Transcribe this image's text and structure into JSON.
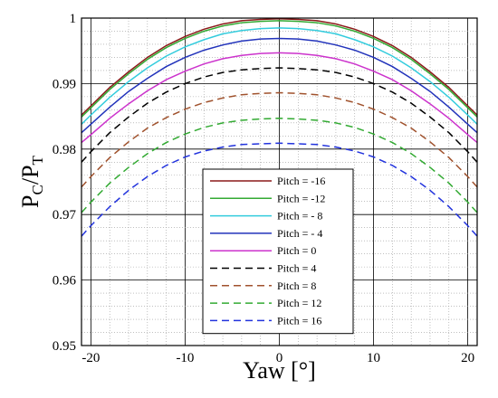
{
  "chart_data": {
    "type": "line",
    "title": "",
    "xlabel": "Yaw [°]",
    "ylabel_main": "P",
    "ylabel_sub1": "C",
    "ylabel_sep": "/P",
    "ylabel_sub2": "T",
    "xlim": [
      -21,
      21
    ],
    "ylim": [
      0.95,
      1.0
    ],
    "xticks": [
      -20,
      -10,
      0,
      10,
      20
    ],
    "xtick_labels": [
      "-20",
      "-10",
      "0",
      "10",
      "20"
    ],
    "yticks": [
      0.95,
      0.96,
      0.97,
      0.98,
      0.99,
      1.0
    ],
    "ytick_labels": [
      "0.95",
      "0.96",
      "0.97",
      "0.98",
      "0.99",
      "1"
    ],
    "grid": true,
    "legend_position": "bottom-center",
    "x": [
      -21,
      -20,
      -18,
      -16,
      -14,
      -12,
      -10,
      -8,
      -6,
      -4,
      -2,
      0,
      2,
      4,
      6,
      8,
      10,
      12,
      14,
      16,
      18,
      20,
      21
    ],
    "series": [
      {
        "name": "Pitch = -16",
        "color": "#8B1A1A",
        "dash": "solid",
        "values": [
          0.9852,
          0.9866,
          0.9894,
          0.9918,
          0.994,
          0.9958,
          0.9972,
          0.9983,
          0.9991,
          0.9996,
          0.9998,
          0.9999,
          0.9998,
          0.9996,
          0.9991,
          0.9983,
          0.9972,
          0.9958,
          0.994,
          0.9918,
          0.9894,
          0.9866,
          0.9852
        ]
      },
      {
        "name": "Pitch = -12",
        "color": "#33AA33",
        "dash": "solid",
        "values": [
          0.9849,
          0.9863,
          0.9891,
          0.9915,
          0.9937,
          0.9955,
          0.9969,
          0.998,
          0.9988,
          0.9993,
          0.9995,
          0.9996,
          0.9995,
          0.9993,
          0.9988,
          0.998,
          0.9969,
          0.9955,
          0.9937,
          0.9915,
          0.9891,
          0.9863,
          0.9849
        ]
      },
      {
        "name": "Pitch = - 8",
        "color": "#33CCDD",
        "dash": "solid",
        "values": [
          0.9838,
          0.9852,
          0.9879,
          0.9903,
          0.9924,
          0.9942,
          0.9956,
          0.9967,
          0.9976,
          0.9981,
          0.9984,
          0.9985,
          0.9984,
          0.9981,
          0.9976,
          0.9967,
          0.9956,
          0.9942,
          0.9924,
          0.9903,
          0.9879,
          0.9852,
          0.9838
        ]
      },
      {
        "name": "Pitch = - 4",
        "color": "#2233BB",
        "dash": "solid",
        "values": [
          0.9825,
          0.9838,
          0.9864,
          0.9888,
          0.9908,
          0.9926,
          0.994,
          0.9951,
          0.9959,
          0.9965,
          0.9968,
          0.9969,
          0.9968,
          0.9965,
          0.9959,
          0.9951,
          0.994,
          0.9926,
          0.9908,
          0.9888,
          0.9864,
          0.9838,
          0.9825
        ]
      },
      {
        "name": "Pitch = 0",
        "color": "#CC33CC",
        "dash": "solid",
        "values": [
          0.981,
          0.9822,
          0.9847,
          0.9869,
          0.9889,
          0.9906,
          0.9919,
          0.993,
          0.9938,
          0.9943,
          0.9946,
          0.9947,
          0.9946,
          0.9943,
          0.9938,
          0.993,
          0.9919,
          0.9906,
          0.9889,
          0.9869,
          0.9847,
          0.9822,
          0.981
        ]
      },
      {
        "name": "Pitch = 4",
        "color": "#000000",
        "dash": "dashed",
        "values": [
          0.978,
          0.9796,
          0.9825,
          0.9849,
          0.987,
          0.9887,
          0.99,
          0.991,
          0.9917,
          0.9921,
          0.9923,
          0.9924,
          0.9923,
          0.9921,
          0.9917,
          0.991,
          0.99,
          0.9887,
          0.987,
          0.9849,
          0.9825,
          0.9796,
          0.978
        ]
      },
      {
        "name": "Pitch = 8",
        "color": "#A0522D",
        "dash": "dashed",
        "values": [
          0.9742,
          0.9758,
          0.9787,
          0.9811,
          0.9832,
          0.9848,
          0.9861,
          0.9871,
          0.9878,
          0.9883,
          0.9885,
          0.9886,
          0.9885,
          0.9883,
          0.9878,
          0.9871,
          0.9861,
          0.9848,
          0.9832,
          0.9811,
          0.9787,
          0.9758,
          0.9742
        ]
      },
      {
        "name": "Pitch = 12",
        "color": "#33AA33",
        "dash": "dashed",
        "values": [
          0.9703,
          0.9719,
          0.9748,
          0.9772,
          0.9793,
          0.981,
          0.9823,
          0.9833,
          0.984,
          0.9844,
          0.9846,
          0.9847,
          0.9846,
          0.9844,
          0.984,
          0.9833,
          0.9823,
          0.981,
          0.9793,
          0.9772,
          0.9748,
          0.9719,
          0.9703
        ]
      },
      {
        "name": "Pitch = 16",
        "color": "#2233DD",
        "dash": "dashed",
        "values": [
          0.9667,
          0.9683,
          0.9712,
          0.9737,
          0.9758,
          0.9775,
          0.9788,
          0.9797,
          0.9803,
          0.9807,
          0.9808,
          0.9809,
          0.9808,
          0.9807,
          0.9803,
          0.9797,
          0.9788,
          0.9775,
          0.9758,
          0.9737,
          0.9712,
          0.9683,
          0.9667
        ]
      }
    ]
  }
}
